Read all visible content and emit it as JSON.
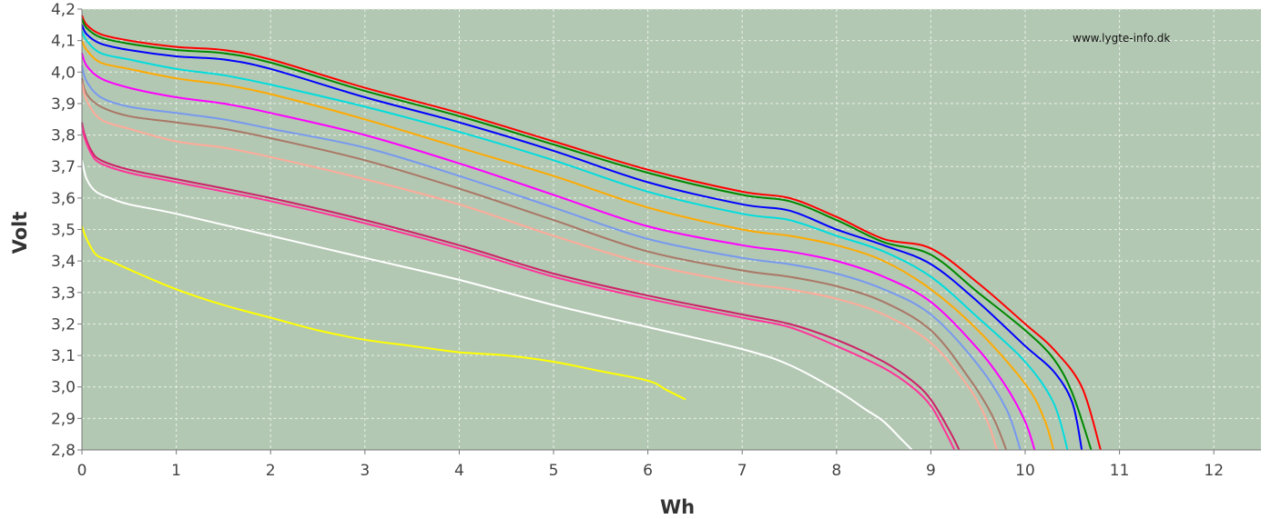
{
  "watermark": "www.lygte-info.dk",
  "colors": {
    "plot_background": "#b3c8b3",
    "grid": "#e8efe8",
    "axis": "#777777"
  },
  "chart_data": {
    "type": "line",
    "xlabel": "Wh",
    "ylabel": "Volt",
    "xlim": [
      0,
      12.5
    ],
    "ylim": [
      2.8,
      4.2
    ],
    "grid": true,
    "legend": "none",
    "x_ticks": [
      "0",
      "1",
      "2",
      "3",
      "4",
      "5",
      "6",
      "7",
      "8",
      "9",
      "10",
      "11",
      "12"
    ],
    "y_ticks": [
      "2,8",
      "2,9",
      "3,0",
      "3,1",
      "3,2",
      "3,3",
      "3,4",
      "3,5",
      "3,6",
      "3,7",
      "3,8",
      "3,9",
      "4,0",
      "4,1",
      "4,2"
    ],
    "series": [
      {
        "color": "#ff0000",
        "x": [
          0,
          0.05,
          0.2,
          0.5,
          1.0,
          1.5,
          2.0,
          3.0,
          4.0,
          5.0,
          6.0,
          7.0,
          7.5,
          8.0,
          8.5,
          9.0,
          9.5,
          10.0,
          10.3,
          10.6,
          10.8
        ],
        "y": [
          4.18,
          4.15,
          4.12,
          4.1,
          4.08,
          4.07,
          4.04,
          3.95,
          3.87,
          3.78,
          3.69,
          3.62,
          3.6,
          3.54,
          3.47,
          3.44,
          3.33,
          3.2,
          3.12,
          3.0,
          2.8
        ]
      },
      {
        "color": "#008800",
        "x": [
          0,
          0.05,
          0.2,
          0.5,
          1.0,
          1.5,
          2.0,
          3.0,
          4.0,
          5.0,
          6.0,
          7.0,
          7.5,
          8.0,
          8.5,
          9.0,
          9.5,
          10.0,
          10.3,
          10.5,
          10.7
        ],
        "y": [
          4.17,
          4.14,
          4.11,
          4.09,
          4.07,
          4.06,
          4.03,
          3.94,
          3.86,
          3.77,
          3.68,
          3.61,
          3.59,
          3.53,
          3.46,
          3.42,
          3.3,
          3.18,
          3.09,
          2.98,
          2.8
        ]
      },
      {
        "color": "#0000ff",
        "x": [
          0,
          0.05,
          0.2,
          0.5,
          1.0,
          1.5,
          2.0,
          3.0,
          4.0,
          5.0,
          6.0,
          7.0,
          7.5,
          8.0,
          8.5,
          9.0,
          9.5,
          10.0,
          10.3,
          10.5,
          10.6
        ],
        "y": [
          4.15,
          4.12,
          4.09,
          4.07,
          4.05,
          4.04,
          4.01,
          3.92,
          3.84,
          3.75,
          3.65,
          3.58,
          3.56,
          3.5,
          3.45,
          3.39,
          3.27,
          3.13,
          3.05,
          2.95,
          2.8
        ]
      },
      {
        "color": "#00dddd",
        "x": [
          0,
          0.05,
          0.2,
          0.5,
          1.0,
          1.5,
          2.0,
          3.0,
          4.0,
          5.0,
          6.0,
          7.0,
          7.5,
          8.0,
          8.5,
          9.0,
          9.5,
          10.0,
          10.3,
          10.45
        ],
        "y": [
          4.13,
          4.1,
          4.06,
          4.04,
          4.01,
          3.99,
          3.96,
          3.89,
          3.81,
          3.72,
          3.62,
          3.55,
          3.53,
          3.48,
          3.43,
          3.35,
          3.22,
          3.08,
          2.95,
          2.8
        ]
      },
      {
        "color": "#ffaa00",
        "x": [
          0,
          0.05,
          0.2,
          0.5,
          1.0,
          1.5,
          2.0,
          3.0,
          4.0,
          5.0,
          6.0,
          7.0,
          7.5,
          8.0,
          8.5,
          9.0,
          9.5,
          10.0,
          10.2,
          10.3
        ],
        "y": [
          4.1,
          4.07,
          4.03,
          4.01,
          3.98,
          3.96,
          3.93,
          3.85,
          3.76,
          3.67,
          3.57,
          3.5,
          3.48,
          3.45,
          3.4,
          3.31,
          3.18,
          3.01,
          2.9,
          2.8
        ]
      },
      {
        "color": "#ff00ff",
        "x": [
          0,
          0.05,
          0.2,
          0.5,
          1.0,
          1.5,
          2.0,
          3.0,
          4.0,
          5.0,
          6.0,
          7.0,
          7.5,
          8.0,
          8.5,
          9.0,
          9.5,
          9.8,
          10.0,
          10.1
        ],
        "y": [
          4.06,
          4.02,
          3.98,
          3.95,
          3.92,
          3.9,
          3.87,
          3.8,
          3.71,
          3.61,
          3.51,
          3.45,
          3.43,
          3.4,
          3.35,
          3.27,
          3.12,
          3.0,
          2.89,
          2.8
        ]
      },
      {
        "color": "#7799ee",
        "x": [
          0,
          0.05,
          0.2,
          0.5,
          1.0,
          1.5,
          2.0,
          3.0,
          4.0,
          5.0,
          6.0,
          7.0,
          7.5,
          8.0,
          8.5,
          9.0,
          9.5,
          9.8,
          9.95
        ],
        "y": [
          4.02,
          3.97,
          3.92,
          3.89,
          3.87,
          3.85,
          3.82,
          3.76,
          3.67,
          3.57,
          3.47,
          3.41,
          3.39,
          3.36,
          3.31,
          3.23,
          3.07,
          2.93,
          2.8
        ]
      },
      {
        "color": "#aa7766",
        "x": [
          0,
          0.05,
          0.2,
          0.5,
          1.0,
          1.5,
          2.0,
          3.0,
          4.0,
          5.0,
          6.0,
          7.0,
          7.5,
          8.0,
          8.5,
          9.0,
          9.4,
          9.65,
          9.8
        ],
        "y": [
          3.98,
          3.93,
          3.89,
          3.86,
          3.84,
          3.82,
          3.79,
          3.72,
          3.63,
          3.53,
          3.43,
          3.37,
          3.35,
          3.32,
          3.27,
          3.18,
          3.03,
          2.91,
          2.8
        ]
      },
      {
        "color": "#ffaa99",
        "x": [
          0,
          0.05,
          0.2,
          0.5,
          1.0,
          1.5,
          2.0,
          3.0,
          4.0,
          5.0,
          6.0,
          7.0,
          7.5,
          8.0,
          8.5,
          9.0,
          9.4,
          9.6,
          9.7
        ],
        "y": [
          3.97,
          3.91,
          3.85,
          3.82,
          3.78,
          3.76,
          3.73,
          3.66,
          3.58,
          3.48,
          3.39,
          3.33,
          3.31,
          3.28,
          3.23,
          3.14,
          3.0,
          2.89,
          2.8
        ]
      },
      {
        "color": "#cc2266",
        "x": [
          0,
          0.03,
          0.1,
          0.2,
          0.5,
          1.0,
          2.0,
          3.0,
          4.0,
          5.0,
          6.0,
          7.0,
          7.5,
          8.0,
          8.5,
          8.8,
          9.0,
          9.2,
          9.3
        ],
        "y": [
          3.84,
          3.8,
          3.75,
          3.72,
          3.69,
          3.66,
          3.6,
          3.53,
          3.45,
          3.36,
          3.29,
          3.23,
          3.2,
          3.15,
          3.08,
          3.02,
          2.96,
          2.86,
          2.8
        ]
      },
      {
        "color": "#ff3399",
        "x": [
          0,
          0.03,
          0.1,
          0.2,
          0.5,
          1.0,
          2.0,
          3.0,
          4.0,
          5.0,
          6.0,
          7.0,
          7.5,
          8.0,
          8.5,
          8.8,
          9.0,
          9.15,
          9.25
        ],
        "y": [
          3.83,
          3.79,
          3.74,
          3.71,
          3.68,
          3.65,
          3.59,
          3.52,
          3.44,
          3.35,
          3.28,
          3.22,
          3.19,
          3.13,
          3.06,
          3.0,
          2.94,
          2.86,
          2.8
        ]
      },
      {
        "color": "#ffffff",
        "x": [
          0,
          0.05,
          0.15,
          0.3,
          0.5,
          1.0,
          2.0,
          3.0,
          4.0,
          5.0,
          6.0,
          7.0,
          7.5,
          8.0,
          8.3,
          8.5,
          8.7,
          8.8
        ],
        "y": [
          3.72,
          3.66,
          3.62,
          3.6,
          3.58,
          3.55,
          3.48,
          3.41,
          3.34,
          3.26,
          3.19,
          3.12,
          3.07,
          2.99,
          2.93,
          2.89,
          2.83,
          2.8
        ]
      },
      {
        "color": "#ffff00",
        "x": [
          0,
          0.05,
          0.15,
          0.3,
          0.6,
          1.0,
          1.5,
          2.0,
          2.5,
          3.0,
          3.5,
          4.0,
          4.5,
          5.0,
          5.5,
          6.0,
          6.2,
          6.4
        ],
        "y": [
          3.51,
          3.47,
          3.42,
          3.4,
          3.36,
          3.31,
          3.26,
          3.22,
          3.18,
          3.15,
          3.13,
          3.11,
          3.1,
          3.08,
          3.05,
          3.02,
          2.99,
          2.96
        ]
      }
    ]
  }
}
